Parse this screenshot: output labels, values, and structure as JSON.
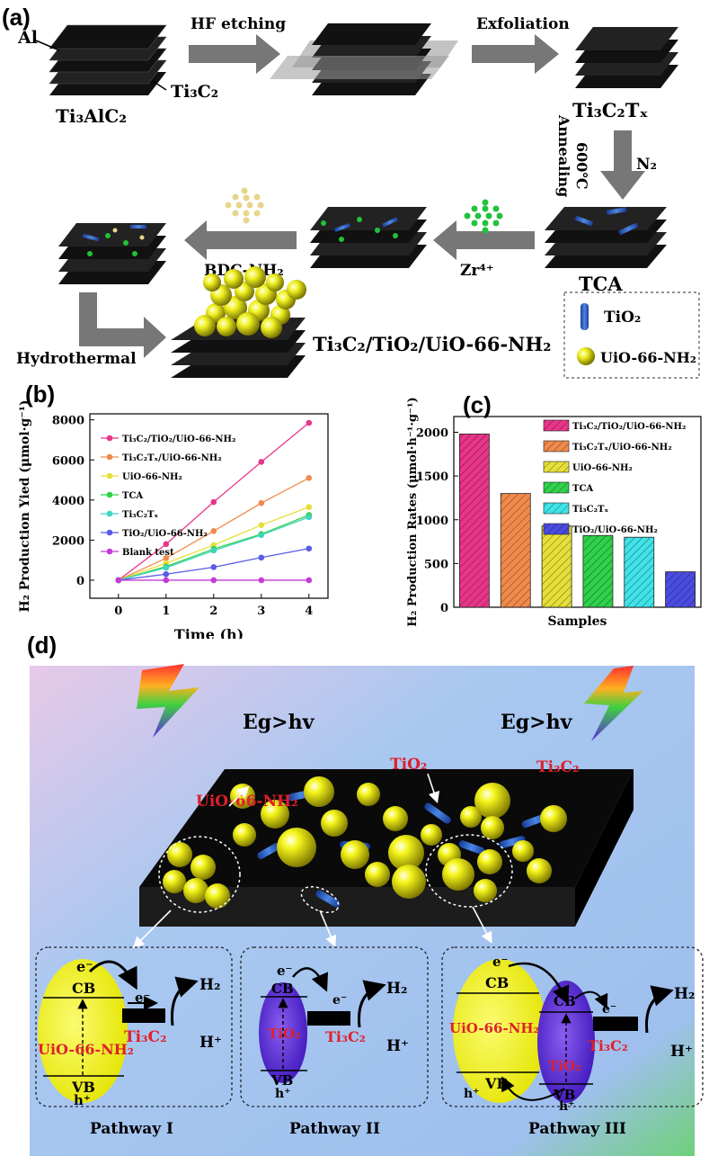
{
  "panel_a": {
    "label": "(a)",
    "al": "Al",
    "ti3alc2": "Ti₃AlC₂",
    "ti3c2": "Ti₃C₂",
    "hf": "HF etching",
    "exfoliation": "Exfoliation",
    "ti3c2tx": "Ti₃C₂Tₓ",
    "annealing": "Annealing",
    "temp": "600℃",
    "n2": "N₂",
    "tca": "TCA",
    "zr": "Zr⁴⁺",
    "bdc": "BDC-NH₂",
    "hydrothermal": "Hydrothermal",
    "product": "Ti₃C₂/TiO₂/UiO-66-NH₂",
    "legend_tio2": "TiO₂",
    "legend_uio": "UiO-66-NH₂"
  },
  "panel_d": {
    "label": "(d)",
    "eg_left": "Eg>hv",
    "eg_right": "Eg>hv",
    "uio": "UiO-66-NH₂",
    "tio2": "TiO₂",
    "ti3c2": "Ti₃C₂",
    "e": "e⁻",
    "cb": "CB",
    "vb": "VB",
    "h": "h⁺",
    "h2": "H₂",
    "hplus": "H⁺",
    "p1": "Pathway I",
    "p2": "Pathway II",
    "p3": "Pathway III",
    "colors": {
      "uio": "#f0f010",
      "tio2": "#5b21d6",
      "label_red": "#e0202a"
    }
  },
  "chart_data": [
    {
      "type": "line",
      "panel": "(b)",
      "xlabel": "Time (h)",
      "ylabel": "H₂ Production Yied (μmol·g⁻¹)",
      "x": [
        0,
        1,
        2,
        3,
        4
      ],
      "xlim": [
        -0.6,
        4.4
      ],
      "ylim": [
        -900,
        8300
      ],
      "xticks": [
        "0",
        "1",
        "2",
        "3",
        "4"
      ],
      "yticks": [
        "0",
        "2000",
        "4000",
        "6000",
        "8000"
      ],
      "legend_position": "top-left",
      "series": [
        {
          "name": "Ti₃C₂/TiO₂/UiO-66-NH₂",
          "color": "#e8358a",
          "values": [
            0,
            1800,
            3900,
            5900,
            7850
          ]
        },
        {
          "name": "Ti₃C₂Tₓ/UiO-66-NH₂",
          "color": "#f08a4b",
          "values": [
            0,
            1100,
            2450,
            3850,
            5100
          ]
        },
        {
          "name": "UiO-66-NH₂",
          "color": "#e6df3a",
          "values": [
            0,
            850,
            1750,
            2750,
            3650
          ]
        },
        {
          "name": "TCA",
          "color": "#2fd14a",
          "values": [
            0,
            680,
            1560,
            2300,
            3250
          ]
        },
        {
          "name": "Ti₃C₂Tₓ",
          "color": "#3fd3c0",
          "values": [
            0,
            620,
            1480,
            2250,
            3150
          ]
        },
        {
          "name": "TiO₂/UiO-66-NH₂",
          "color": "#5a5ce6",
          "values": [
            0,
            300,
            650,
            1130,
            1580
          ]
        },
        {
          "name": "Blank test",
          "color": "#c43ad6",
          "values": [
            0,
            0,
            0,
            0,
            0
          ]
        }
      ]
    },
    {
      "type": "bar",
      "panel": "(c)",
      "xlabel": "Samples",
      "ylabel": "H₂ Production Rates (μmol·h⁻¹·g⁻¹)",
      "ylim": [
        0,
        2180
      ],
      "yticks": [
        "0",
        "500",
        "1000",
        "1500",
        "2000"
      ],
      "legend_position": "top-right",
      "categories": [
        "Ti₃C₂/TiO₂/UiO-66-NH₂",
        "Ti₃C₂Tₓ/UiO-66-NH₂",
        "UiO-66-NH₂",
        "TCA",
        "Ti₃C₂Tₓ",
        "TiO₂/UiO-66-NH₂"
      ],
      "values": [
        1980,
        1300,
        930,
        820,
        800,
        405
      ],
      "colors": [
        "#e8358a",
        "#f08a4b",
        "#e6df3a",
        "#2fd14a",
        "#3fe3e8",
        "#4a4ce0"
      ]
    }
  ]
}
